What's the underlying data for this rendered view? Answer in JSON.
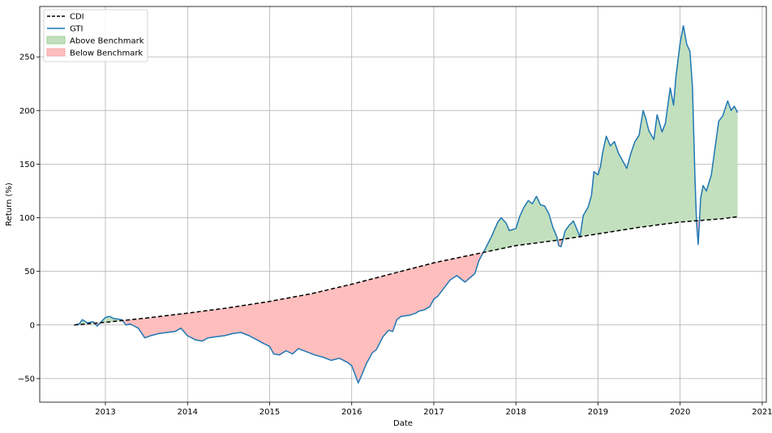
{
  "chart_data": {
    "type": "line",
    "xlabel": "Date",
    "ylabel": "Return (%)",
    "xlim": [
      2012.2,
      2021.05
    ],
    "ylim": [
      -72,
      297
    ],
    "grid": true,
    "legend_placement": "top-left",
    "x_ticks": [
      2013,
      2014,
      2015,
      2016,
      2017,
      2018,
      2019,
      2020,
      2021
    ],
    "x_tick_labels": [
      "2013",
      "2014",
      "2015",
      "2016",
      "2017",
      "2018",
      "2019",
      "2020",
      "2021"
    ],
    "y_ticks": [
      -50,
      0,
      50,
      100,
      150,
      200,
      250
    ],
    "y_tick_labels": [
      "−50",
      "0",
      "50",
      "100",
      "150",
      "200",
      "250"
    ],
    "legend": [
      {
        "label": "CDI",
        "kind": "dashed-line",
        "color": "#000000"
      },
      {
        "label": "GTI",
        "kind": "line",
        "color": "#1f77b4"
      },
      {
        "label": "Above Benchmark",
        "kind": "patch",
        "color": "#c2e0bd",
        "edge": "#8fc98a"
      },
      {
        "label": "Below Benchmark",
        "kind": "patch",
        "color": "#ffbebe",
        "edge": "#f59a9a"
      }
    ],
    "series": [
      {
        "name": "CDI",
        "style": "dashed",
        "color": "#000000",
        "points": [
          [
            2012.62,
            0
          ],
          [
            2013.0,
            2.5
          ],
          [
            2013.5,
            6.5
          ],
          [
            2014.0,
            11
          ],
          [
            2014.5,
            16
          ],
          [
            2015.0,
            22
          ],
          [
            2015.5,
            29
          ],
          [
            2016.0,
            38
          ],
          [
            2016.5,
            48
          ],
          [
            2017.0,
            58
          ],
          [
            2017.5,
            66
          ],
          [
            2017.75,
            70
          ],
          [
            2018.0,
            74
          ],
          [
            2018.5,
            79
          ],
          [
            2019.0,
            85
          ],
          [
            2019.5,
            91
          ],
          [
            2020.0,
            96
          ],
          [
            2020.5,
            99
          ],
          [
            2020.7,
            101
          ]
        ]
      },
      {
        "name": "GTI",
        "style": "solid",
        "color": "#1f77b4",
        "points": [
          [
            2012.62,
            0
          ],
          [
            2012.68,
            1
          ],
          [
            2012.72,
            5
          ],
          [
            2012.78,
            2
          ],
          [
            2012.85,
            3
          ],
          [
            2012.9,
            -1
          ],
          [
            2012.95,
            3
          ],
          [
            2013.0,
            7
          ],
          [
            2013.05,
            8
          ],
          [
            2013.1,
            6
          ],
          [
            2013.2,
            5
          ],
          [
            2013.25,
            0
          ],
          [
            2013.3,
            1
          ],
          [
            2013.4,
            -3
          ],
          [
            2013.48,
            -12
          ],
          [
            2013.55,
            -10
          ],
          [
            2013.65,
            -8
          ],
          [
            2013.75,
            -7
          ],
          [
            2013.85,
            -6
          ],
          [
            2013.92,
            -3
          ],
          [
            2014.0,
            -10
          ],
          [
            2014.1,
            -14
          ],
          [
            2014.18,
            -15
          ],
          [
            2014.25,
            -12
          ],
          [
            2014.35,
            -11
          ],
          [
            2014.45,
            -10
          ],
          [
            2014.55,
            -8
          ],
          [
            2014.65,
            -7
          ],
          [
            2014.75,
            -10
          ],
          [
            2014.85,
            -14
          ],
          [
            2014.92,
            -17
          ],
          [
            2015.0,
            -20
          ],
          [
            2015.05,
            -27
          ],
          [
            2015.12,
            -28
          ],
          [
            2015.2,
            -24
          ],
          [
            2015.28,
            -27
          ],
          [
            2015.35,
            -22
          ],
          [
            2015.45,
            -25
          ],
          [
            2015.55,
            -28
          ],
          [
            2015.65,
            -30
          ],
          [
            2015.75,
            -33
          ],
          [
            2015.85,
            -31
          ],
          [
            2015.95,
            -35
          ],
          [
            2016.0,
            -38
          ],
          [
            2016.05,
            -48
          ],
          [
            2016.08,
            -54
          ],
          [
            2016.12,
            -47
          ],
          [
            2016.18,
            -36
          ],
          [
            2016.25,
            -26
          ],
          [
            2016.3,
            -23
          ],
          [
            2016.38,
            -11
          ],
          [
            2016.45,
            -5
          ],
          [
            2016.5,
            -6
          ],
          [
            2016.55,
            5
          ],
          [
            2016.6,
            8
          ],
          [
            2016.7,
            9
          ],
          [
            2016.78,
            11
          ],
          [
            2016.82,
            13
          ],
          [
            2016.88,
            14
          ],
          [
            2016.95,
            17
          ],
          [
            2017.0,
            24
          ],
          [
            2017.05,
            27
          ],
          [
            2017.12,
            34
          ],
          [
            2017.2,
            42
          ],
          [
            2017.28,
            46
          ],
          [
            2017.38,
            40
          ],
          [
            2017.5,
            48
          ],
          [
            2017.55,
            60
          ],
          [
            2017.62,
            70
          ],
          [
            2017.7,
            82
          ],
          [
            2017.78,
            96
          ],
          [
            2017.82,
            100
          ],
          [
            2017.88,
            95
          ],
          [
            2017.92,
            88
          ],
          [
            2018.0,
            90
          ],
          [
            2018.05,
            102
          ],
          [
            2018.1,
            110
          ],
          [
            2018.15,
            116
          ],
          [
            2018.2,
            113
          ],
          [
            2018.25,
            120
          ],
          [
            2018.3,
            112
          ],
          [
            2018.35,
            111
          ],
          [
            2018.4,
            104
          ],
          [
            2018.45,
            91
          ],
          [
            2018.5,
            82
          ],
          [
            2018.52,
            74
          ],
          [
            2018.55,
            73
          ],
          [
            2018.6,
            88
          ],
          [
            2018.65,
            93
          ],
          [
            2018.7,
            97
          ],
          [
            2018.75,
            88
          ],
          [
            2018.78,
            82
          ],
          [
            2018.82,
            102
          ],
          [
            2018.88,
            110
          ],
          [
            2018.92,
            121
          ],
          [
            2018.95,
            143
          ],
          [
            2019.0,
            140
          ],
          [
            2019.03,
            148
          ],
          [
            2019.06,
            162
          ],
          [
            2019.1,
            176
          ],
          [
            2019.15,
            167
          ],
          [
            2019.2,
            171
          ],
          [
            2019.25,
            160
          ],
          [
            2019.3,
            153
          ],
          [
            2019.35,
            146
          ],
          [
            2019.4,
            160
          ],
          [
            2019.45,
            171
          ],
          [
            2019.5,
            177
          ],
          [
            2019.55,
            200
          ],
          [
            2019.58,
            193
          ],
          [
            2019.62,
            181
          ],
          [
            2019.68,
            173
          ],
          [
            2019.72,
            196
          ],
          [
            2019.78,
            180
          ],
          [
            2019.82,
            188
          ],
          [
            2019.88,
            221
          ],
          [
            2019.92,
            205
          ],
          [
            2019.95,
            232
          ],
          [
            2020.0,
            263
          ],
          [
            2020.04,
            279
          ],
          [
            2020.08,
            262
          ],
          [
            2020.12,
            255
          ],
          [
            2020.15,
            222
          ],
          [
            2020.18,
            140
          ],
          [
            2020.2,
            96
          ],
          [
            2020.22,
            75
          ],
          [
            2020.25,
            118
          ],
          [
            2020.28,
            130
          ],
          [
            2020.32,
            125
          ],
          [
            2020.38,
            140
          ],
          [
            2020.42,
            162
          ],
          [
            2020.47,
            190
          ],
          [
            2020.52,
            195
          ],
          [
            2020.58,
            209
          ],
          [
            2020.62,
            200
          ],
          [
            2020.66,
            204
          ],
          [
            2020.7,
            198
          ]
        ]
      }
    ]
  }
}
